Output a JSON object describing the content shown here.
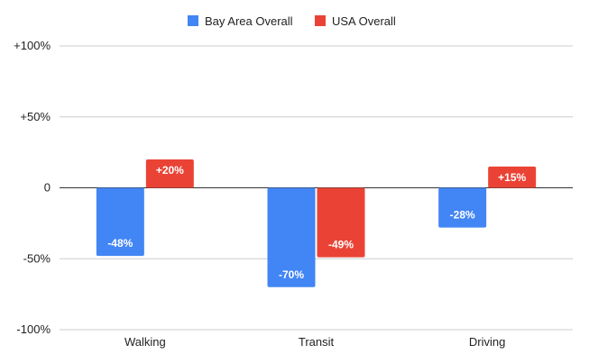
{
  "chart_data": {
    "type": "bar",
    "categories": [
      "Walking",
      "Transit",
      "Driving"
    ],
    "series": [
      {
        "name": "Bay Area Overall",
        "color": "#4285f4",
        "values": [
          -48,
          -70,
          -28
        ],
        "labels": [
          "-48%",
          "-70%",
          "-28%"
        ]
      },
      {
        "name": "USA Overall",
        "color": "#ea4335",
        "values": [
          20,
          -49,
          15
        ],
        "labels": [
          "+20%",
          "-49%",
          "+15%"
        ]
      }
    ],
    "ylim": [
      -100,
      100
    ],
    "yticks": [
      -100,
      -50,
      0,
      50,
      100
    ],
    "ytick_labels": [
      "-100%",
      "-50%",
      "0",
      "+50%",
      "+100%"
    ],
    "grid": true,
    "legend_position": "top-center",
    "title": "",
    "xlabel": "",
    "ylabel": ""
  }
}
